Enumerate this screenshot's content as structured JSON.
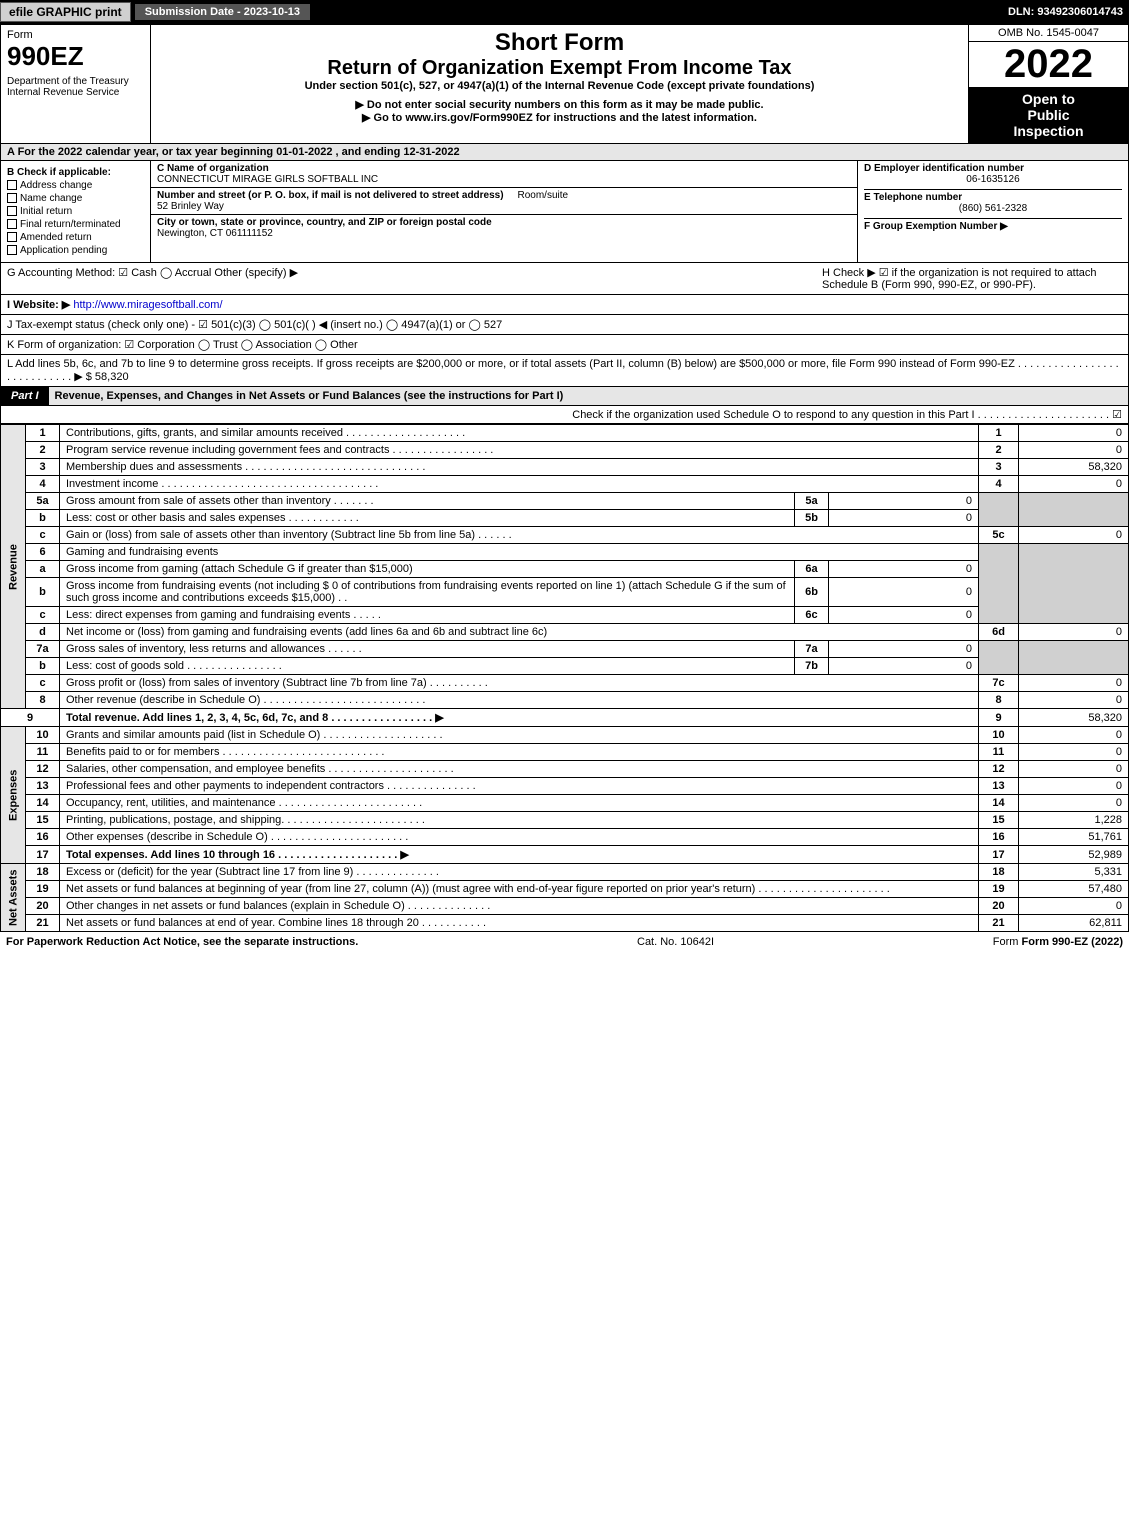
{
  "topbar": {
    "efile": "efile GRAPHIC print",
    "sub_date": "Submission Date - 2023-10-13",
    "dln": "DLN: 93492306014743"
  },
  "header": {
    "form_label": "Form",
    "form_no": "990EZ",
    "dept": "Department of the Treasury\nInternal Revenue Service",
    "title1": "Short Form",
    "title2": "Return of Organization Exempt From Income Tax",
    "subtitle": "Under section 501(c), 527, or 4947(a)(1) of the Internal Revenue Code (except private foundations)",
    "warn": "▶ Do not enter social security numbers on this form as it may be made public.",
    "goto": "▶ Go to www.irs.gov/Form990EZ for instructions and the latest information.",
    "omb": "OMB No. 1545-0047",
    "year": "2022",
    "inspect1": "Open to",
    "inspect2": "Public",
    "inspect3": "Inspection"
  },
  "row_a": "A  For the 2022 calendar year, or tax year beginning 01-01-2022  , and ending 12-31-2022",
  "section_b": {
    "heading": "B  Check if applicable:",
    "address_change": "Address change",
    "name_change": "Name change",
    "initial_return": "Initial return",
    "final_return": "Final return/terminated",
    "amended_return": "Amended return",
    "app_pending": "Application pending"
  },
  "section_c": {
    "name_lbl": "C Name of organization",
    "name": "CONNECTICUT MIRAGE GIRLS SOFTBALL INC",
    "street_lbl": "Number and street (or P. O. box, if mail is not delivered to street address)",
    "room_lbl": "Room/suite",
    "street": "52 Brinley Way",
    "city_lbl": "City or town, state or province, country, and ZIP or foreign postal code",
    "city": "Newington, CT  061111152"
  },
  "section_d": {
    "ein_lbl": "D Employer identification number",
    "ein": "06-1635126",
    "phone_lbl": "E Telephone number",
    "phone": "(860) 561-2328",
    "group_lbl": "F Group Exemption Number  ▶"
  },
  "section_g": {
    "text": "G Accounting Method:  ☑ Cash  ◯ Accrual  Other (specify) ▶"
  },
  "section_h": {
    "text": "H  Check ▶ ☑ if the organization is not required to attach Schedule B (Form 990, 990-EZ, or 990-PF)."
  },
  "section_i": {
    "lbl": "I Website: ▶",
    "url": "http://www.miragesoftball.com/"
  },
  "section_j": "J Tax-exempt status (check only one) - ☑ 501(c)(3) ◯ 501(c)(  ) ◀ (insert no.) ◯ 4947(a)(1) or ◯ 527",
  "section_k": "K Form of organization:  ☑ Corporation  ◯ Trust  ◯ Association  ◯ Other",
  "section_l": {
    "text": "L Add lines 5b, 6c, and 7b to line 9 to determine gross receipts. If gross receipts are $200,000 or more, or if total assets (Part II, column (B) below) are $500,000 or more, file Form 990 instead of Form 990-EZ  .  .  .  .  .  .  .  .  .  .  .  .  .  .  .  .  .  .  .  .  .  .  .  .  .  .  .  .  ▶ $ 58,320"
  },
  "part1": {
    "badge": "Part I",
    "title": "Revenue, Expenses, and Changes in Net Assets or Fund Balances (see the instructions for Part I)",
    "check": "Check if the organization used Schedule O to respond to any question in this Part I  .  .  .  .  .  .  .  .  .  .  .  .  .  .  .  .  .  .  .  .  .  .  ☑"
  },
  "side": {
    "rev": "Revenue",
    "exp": "Expenses",
    "net": "Net Assets"
  },
  "lines": {
    "l1": {
      "n": "1",
      "d": "Contributions, gifts, grants, and similar amounts received  .  .  .  .  .  .  .  .  .  .  .  .  .  .  .  .  .  .  .  .",
      "v": "0"
    },
    "l2": {
      "n": "2",
      "d": "Program service revenue including government fees and contracts  .  .  .  .  .  .  .  .  .  .  .  .  .  .  .  .  .",
      "v": "0"
    },
    "l3": {
      "n": "3",
      "d": "Membership dues and assessments  .  .  .  .  .  .  .  .  .  .  .  .  .  .  .  .  .  .  .  .  .  .  .  .  .  .  .  .  .  .",
      "v": "58,320"
    },
    "l4": {
      "n": "4",
      "d": "Investment income  .  .  .  .  .  .  .  .  .  .  .  .  .  .  .  .  .  .  .  .  .  .  .  .  .  .  .  .  .  .  .  .  .  .  .  .",
      "v": "0"
    },
    "l5a": {
      "n": "5a",
      "d": "Gross amount from sale of assets other than inventory  .  .  .  .  .  .  .",
      "sn": "5a",
      "sv": "0"
    },
    "l5b": {
      "n": "b",
      "d": "Less: cost or other basis and sales expenses  .  .  .  .  .  .  .  .  .  .  .  .",
      "sn": "5b",
      "sv": "0"
    },
    "l5c": {
      "n": "c",
      "d": "Gain or (loss) from sale of assets other than inventory (Subtract line 5b from line 5a)  .  .  .  .  .  .",
      "rn": "5c",
      "v": "0"
    },
    "l6": {
      "n": "6",
      "d": "Gaming and fundraising events"
    },
    "l6a": {
      "n": "a",
      "d": "Gross income from gaming (attach Schedule G if greater than $15,000)",
      "sn": "6a",
      "sv": "0"
    },
    "l6b": {
      "n": "b",
      "d": "Gross income from fundraising events (not including $  0              of contributions from fundraising events reported on line 1) (attach Schedule G if the sum of such gross income and contributions exceeds $15,000)   .  .",
      "sn": "6b",
      "sv": "0"
    },
    "l6c": {
      "n": "c",
      "d": "Less: direct expenses from gaming and fundraising events  .  .  .  .  .",
      "sn": "6c",
      "sv": "0"
    },
    "l6d": {
      "n": "d",
      "d": "Net income or (loss) from gaming and fundraising events (add lines 6a and 6b and subtract line 6c)",
      "rn": "6d",
      "v": "0"
    },
    "l7a": {
      "n": "7a",
      "d": "Gross sales of inventory, less returns and allowances  .  .  .  .  .  .",
      "sn": "7a",
      "sv": "0"
    },
    "l7b": {
      "n": "b",
      "d": "Less: cost of goods sold         .  .  .  .  .  .  .  .  .  .  .  .  .  .  .  .",
      "sn": "7b",
      "sv": "0"
    },
    "l7c": {
      "n": "c",
      "d": "Gross profit or (loss) from sales of inventory (Subtract line 7b from line 7a)  .  .  .  .  .  .  .  .  .  .",
      "rn": "7c",
      "v": "0"
    },
    "l8": {
      "n": "8",
      "d": "Other revenue (describe in Schedule O)  .  .  .  .  .  .  .  .  .  .  .  .  .  .  .  .  .  .  .  .  .  .  .  .  .  .  .",
      "v": "0"
    },
    "l9": {
      "n": "9",
      "d": "Total revenue. Add lines 1, 2, 3, 4, 5c, 6d, 7c, and 8  .  .  .  .  .  .  .  .  .  .  .  .  .  .  .  .  .     ▶",
      "v": "58,320"
    },
    "l10": {
      "n": "10",
      "d": "Grants and similar amounts paid (list in Schedule O)  .  .  .  .  .  .  .  .  .  .  .  .  .  .  .  .  .  .  .  .",
      "v": "0"
    },
    "l11": {
      "n": "11",
      "d": "Benefits paid to or for members     .  .  .  .  .  .  .  .  .  .  .  .  .  .  .  .  .  .  .  .  .  .  .  .  .  .  .",
      "v": "0"
    },
    "l12": {
      "n": "12",
      "d": "Salaries, other compensation, and employee benefits .  .  .  .  .  .  .  .  .  .  .  .  .  .  .  .  .  .  .  .  .",
      "v": "0"
    },
    "l13": {
      "n": "13",
      "d": "Professional fees and other payments to independent contractors  .  .  .  .  .  .  .  .  .  .  .  .  .  .  .",
      "v": "0"
    },
    "l14": {
      "n": "14",
      "d": "Occupancy, rent, utilities, and maintenance .  .  .  .  .  .  .  .  .  .  .  .  .  .  .  .  .  .  .  .  .  .  .  .",
      "v": "0"
    },
    "l15": {
      "n": "15",
      "d": "Printing, publications, postage, and shipping.  .  .  .  .  .  .  .  .  .  .  .  .  .  .  .  .  .  .  .  .  .  .  .",
      "v": "1,228"
    },
    "l16": {
      "n": "16",
      "d": "Other expenses (describe in Schedule O)     .  .  .  .  .  .  .  .  .  .  .  .  .  .  .  .  .  .  .  .  .  .  .",
      "v": "51,761"
    },
    "l17": {
      "n": "17",
      "d": "Total expenses. Add lines 10 through 16     .  .  .  .  .  .  .  .  .  .  .  .  .  .  .  .  .  .  .  .     ▶",
      "v": "52,989"
    },
    "l18": {
      "n": "18",
      "d": "Excess or (deficit) for the year (Subtract line 17 from line 9)       .  .  .  .  .  .  .  .  .  .  .  .  .  .",
      "v": "5,331"
    },
    "l19": {
      "n": "19",
      "d": "Net assets or fund balances at beginning of year (from line 27, column (A)) (must agree with end-of-year figure reported on prior year's return) .  .  .  .  .  .  .  .  .  .  .  .  .  .  .  .  .  .  .  .  .  .",
      "v": "57,480"
    },
    "l20": {
      "n": "20",
      "d": "Other changes in net assets or fund balances (explain in Schedule O) .  .  .  .  .  .  .  .  .  .  .  .  .  .",
      "v": "0"
    },
    "l21": {
      "n": "21",
      "d": "Net assets or fund balances at end of year. Combine lines 18 through 20 .  .  .  .  .  .  .  .  .  .  .",
      "v": "62,811"
    }
  },
  "footer": {
    "left": "For Paperwork Reduction Act Notice, see the separate instructions.",
    "mid": "Cat. No. 10642I",
    "right": "Form 990-EZ (2022)"
  }
}
